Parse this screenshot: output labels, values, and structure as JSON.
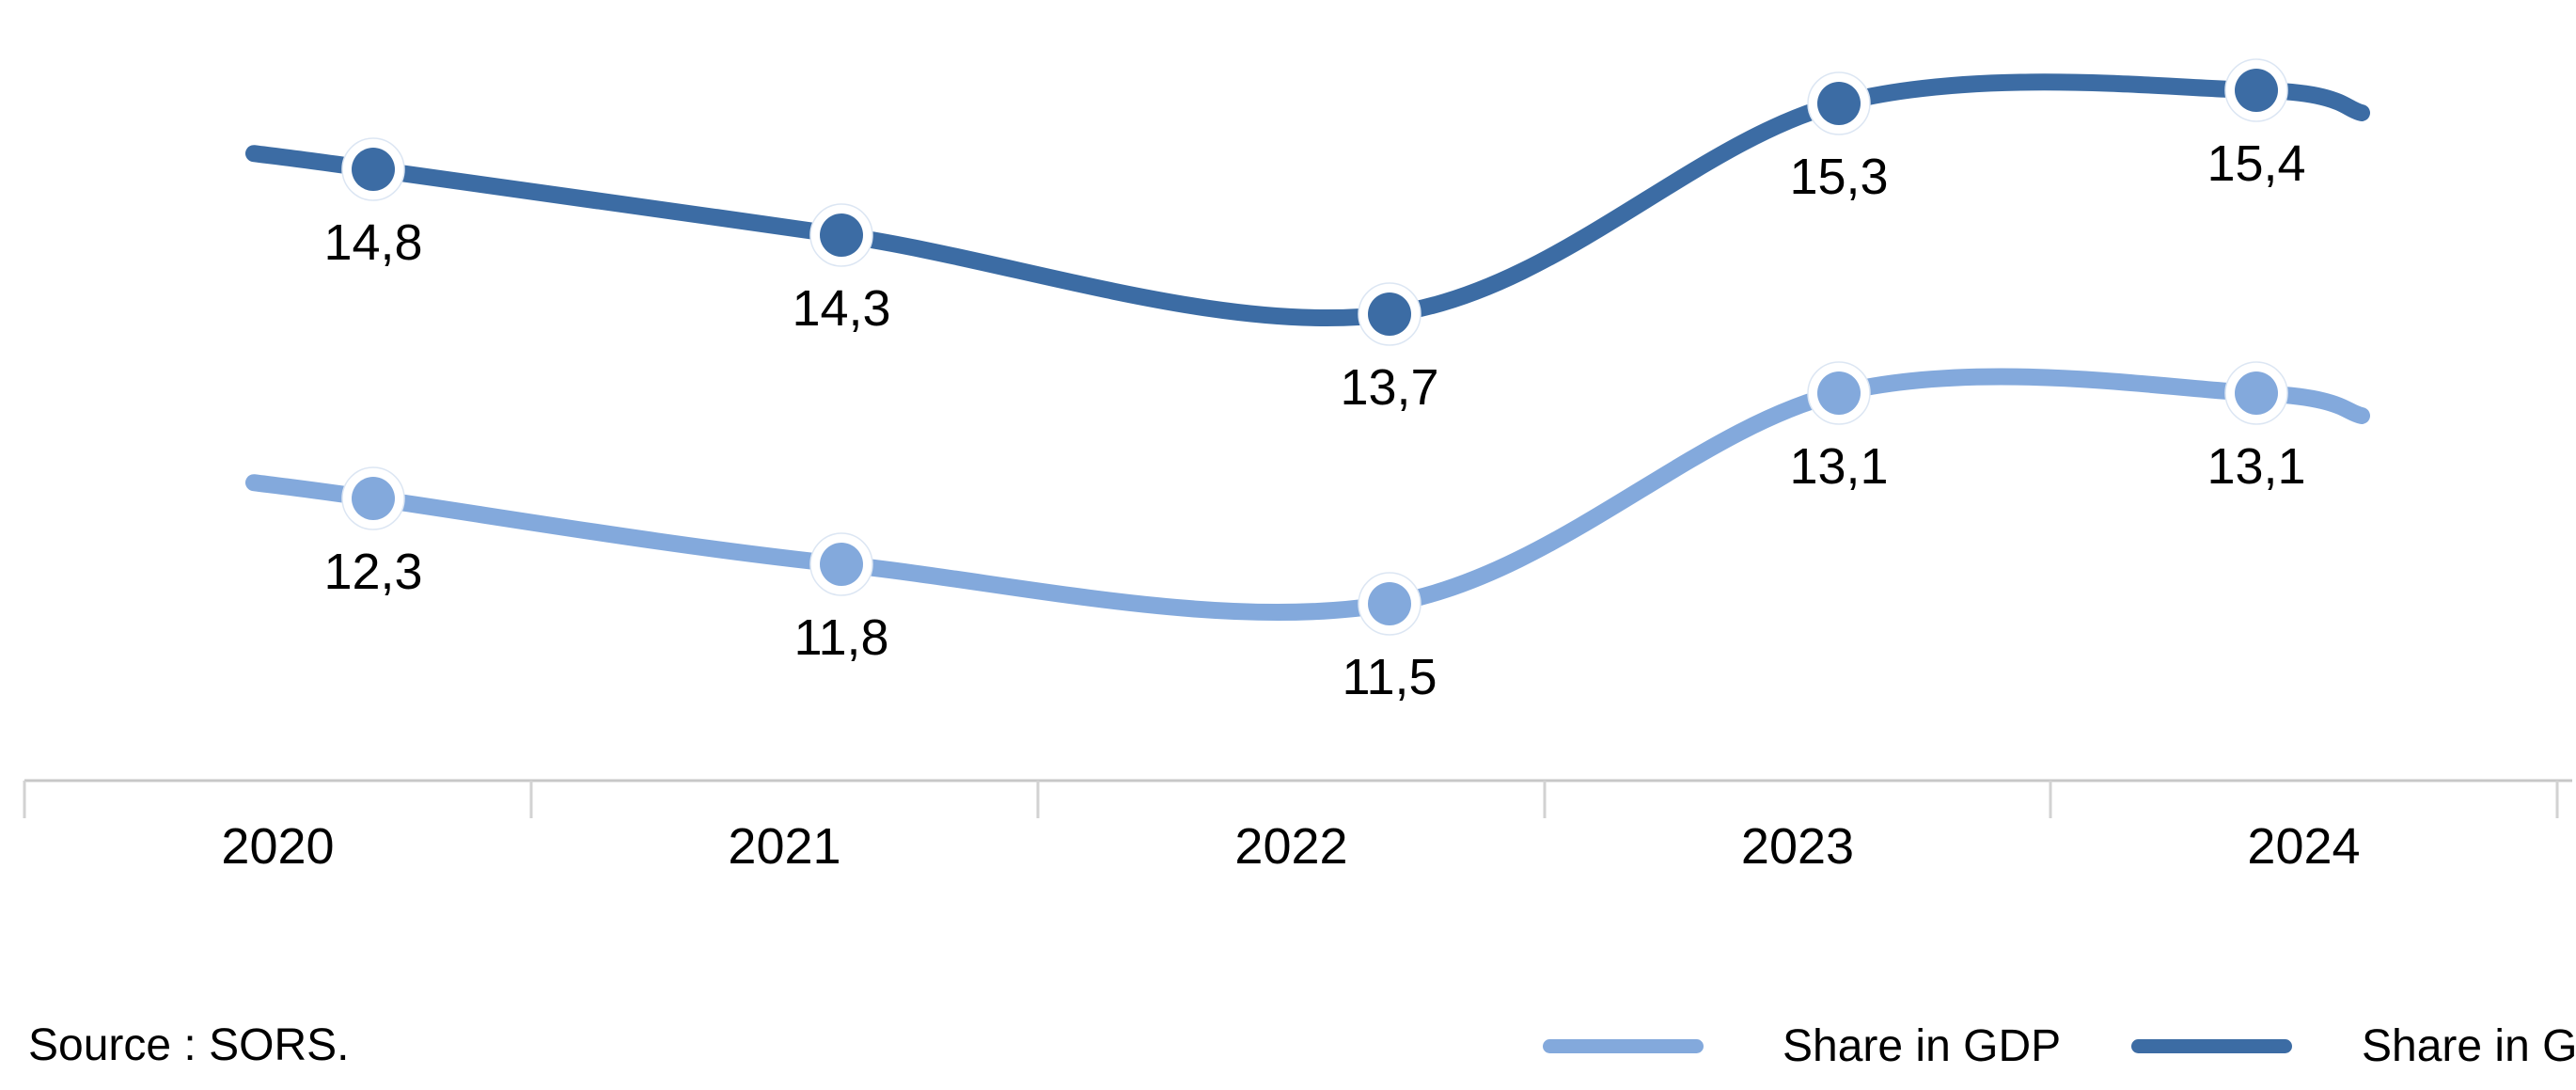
{
  "chart_data": {
    "type": "line",
    "title": "",
    "categories": [
      "2020",
      "2021",
      "2022",
      "2023",
      "2024"
    ],
    "series": [
      {
        "name": "Share in GDP",
        "values": [
          12.3,
          11.8,
          11.5,
          13.1,
          13.1
        ],
        "labels": [
          "12,3",
          "11,8",
          "11,5",
          "13,1",
          "13,1"
        ],
        "color": "#83A9DC"
      },
      {
        "name": "Share in GVA",
        "values": [
          14.8,
          14.3,
          13.7,
          15.3,
          15.4
        ],
        "labels": [
          "14,8",
          "14,3",
          "13,7",
          "15,3",
          "15,4"
        ],
        "color": "#3C6CA4"
      }
    ],
    "decimal_separator": ",",
    "xlabel": "",
    "ylabel": "",
    "ylim": [
      11,
      16
    ],
    "grid": false,
    "line_style": "smooth",
    "marker": "circle-with-white-halo",
    "legend_position": "bottom-right",
    "axis_color": "#C8C8C8",
    "tick_color": "#D2D2D2",
    "label_color": "#000000"
  },
  "footer": {
    "source_label": "Source : SORS.",
    "legend": [
      {
        "label": "Share in GDP",
        "color": "#83A9DC"
      },
      {
        "label": "Share in GVA",
        "color": "#3C6CA4"
      }
    ]
  }
}
